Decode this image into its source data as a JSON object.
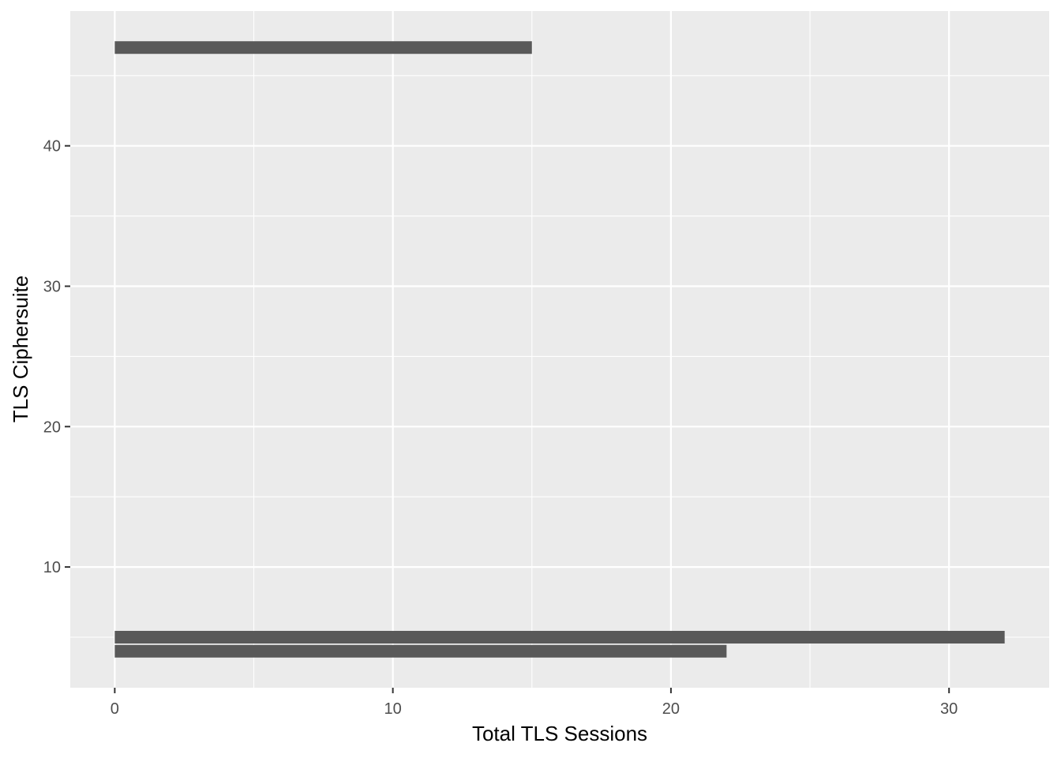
{
  "chart_data": {
    "type": "bar",
    "orientation": "horizontal",
    "title": "",
    "xlabel": "Total TLS Sessions",
    "ylabel": "TLS Ciphersuite",
    "xlim": [
      -1.6,
      33.6
    ],
    "ylim": [
      1.4,
      49.6
    ],
    "x_ticks": [
      0,
      10,
      20,
      30
    ],
    "x_tick_labels": [
      "0",
      "10",
      "20",
      "30"
    ],
    "y_ticks": [
      10,
      20,
      30,
      40
    ],
    "y_tick_labels": [
      "10",
      "20",
      "30",
      "40"
    ],
    "bar_height": 0.9,
    "bars": [
      {
        "category": 4,
        "value": 22
      },
      {
        "category": 5,
        "value": 32
      },
      {
        "category": 47,
        "value": 15
      }
    ],
    "grid": true,
    "legend": "none",
    "colors": {
      "panel_background": "#ebebeb",
      "grid_major": "#ffffff",
      "grid_minor": "#f7f7f7",
      "bar_fill": "#595959",
      "tick_color": "#333333"
    }
  }
}
